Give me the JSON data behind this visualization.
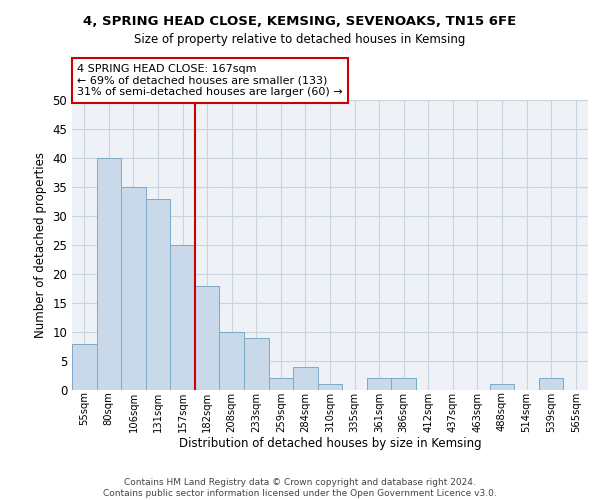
{
  "title_line1": "4, SPRING HEAD CLOSE, KEMSING, SEVENOAKS, TN15 6FE",
  "title_line2": "Size of property relative to detached houses in Kemsing",
  "xlabel": "Distribution of detached houses by size in Kemsing",
  "ylabel": "Number of detached properties",
  "categories": [
    "55sqm",
    "80sqm",
    "106sqm",
    "131sqm",
    "157sqm",
    "182sqm",
    "208sqm",
    "233sqm",
    "259sqm",
    "284sqm",
    "310sqm",
    "335sqm",
    "361sqm",
    "386sqm",
    "412sqm",
    "437sqm",
    "463sqm",
    "488sqm",
    "514sqm",
    "539sqm",
    "565sqm"
  ],
  "values": [
    8,
    40,
    35,
    33,
    25,
    18,
    10,
    9,
    2,
    4,
    1,
    0,
    2,
    2,
    0,
    0,
    0,
    1,
    0,
    2,
    0
  ],
  "bar_color": "#c9d9ea",
  "bar_edge_color": "#7baac8",
  "vline_x": 4.5,
  "vline_color": "#cc0000",
  "annotation_line1": "4 SPRING HEAD CLOSE: 167sqm",
  "annotation_line2": "← 69% of detached houses are smaller (133)",
  "annotation_line3": "31% of semi-detached houses are larger (60) →",
  "annotation_box_color": "#ffffff",
  "annotation_box_edge_color": "#cc0000",
  "ylim": [
    0,
    50
  ],
  "yticks": [
    0,
    5,
    10,
    15,
    20,
    25,
    30,
    35,
    40,
    45,
    50
  ],
  "grid_color": "#c8d4e0",
  "background_color": "#eef2f7",
  "footer_line1": "Contains HM Land Registry data © Crown copyright and database right 2024.",
  "footer_line2": "Contains public sector information licensed under the Open Government Licence v3.0."
}
